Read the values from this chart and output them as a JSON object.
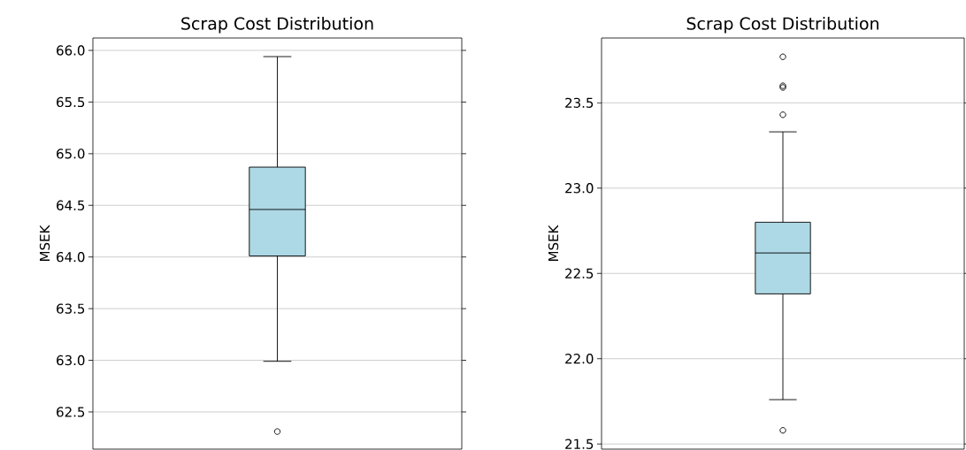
{
  "chart_data": [
    {
      "type": "box",
      "title": "Scrap Cost Distribution",
      "ylabel": "MSEK",
      "categories": [
        null
      ],
      "series": [
        {
          "color": "#add8e6",
          "boxes": [
            {
              "low": 62.99,
              "q1": 64.01,
              "median": 64.46,
              "q3": 64.87,
              "high": 65.94,
              "outliers": [
                62.31
              ]
            }
          ]
        }
      ],
      "ylim": [
        62.14,
        66.12
      ],
      "yticks": [
        62.5,
        {
          "value": 63,
          "label": "63.0"
        },
        63.5,
        {
          "value": 64,
          "label": "64.0"
        },
        64.5,
        {
          "value": 65,
          "label": "65.0"
        },
        65.5,
        {
          "value": 66,
          "label": "66.0"
        }
      ],
      "grid": "y",
      "tick_labels": "y"
    },
    {
      "type": "box",
      "title": "Scrap Cost Distribution",
      "ylabel": "MSEK",
      "categories": [
        null
      ],
      "series": [
        {
          "color": "#add8e6",
          "boxes": [
            {
              "low": 21.76,
              "q1": 22.38,
              "median": 22.62,
              "q3": 22.8,
              "high": 23.33,
              "outliers": [
                21.58,
                23.43,
                23.59,
                23.6,
                23.77
              ]
            }
          ]
        }
      ],
      "ylim": [
        21.47,
        23.88
      ],
      "yticks": [
        21.5,
        {
          "value": 22,
          "label": "22.0"
        },
        22.5,
        {
          "value": 23,
          "label": "23.0"
        },
        23.5
      ],
      "grid": "y",
      "tick_labels": "y"
    }
  ]
}
